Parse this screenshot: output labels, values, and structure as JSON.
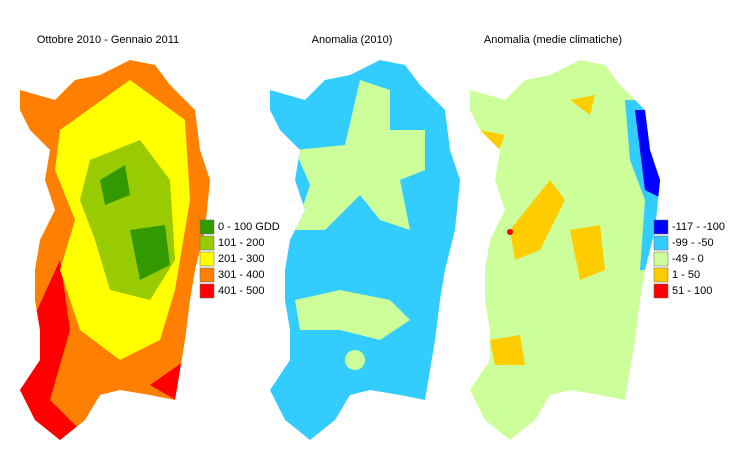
{
  "maps": [
    {
      "title": "Ottobre 2010  - Gennaio 2011"
    },
    {
      "title": "Anomalia (2010)"
    },
    {
      "title": "Anomalia (medie climatiche)"
    }
  ],
  "legends": [
    {
      "items": [
        {
          "label": "0 - 100 GDD",
          "color": "#339900"
        },
        {
          "label": "101 - 200",
          "color": "#99cc00"
        },
        {
          "label": "201 - 300",
          "color": "#ffff00"
        },
        {
          "label": "301 - 400",
          "color": "#ff8000"
        },
        {
          "label": "401 - 500",
          "color": "#ff0000"
        }
      ]
    },
    {
      "items": [
        {
          "label": "-117 - -100",
          "color": "#0000ff"
        },
        {
          "label": "-99 - -50",
          "color": "#33ccff"
        },
        {
          "label": "-49 - 0",
          "color": "#ccff99"
        },
        {
          "label": "1 - 50",
          "color": "#ffcc00"
        },
        {
          "label": "51 - 100",
          "color": "#ff0000"
        }
      ]
    }
  ]
}
